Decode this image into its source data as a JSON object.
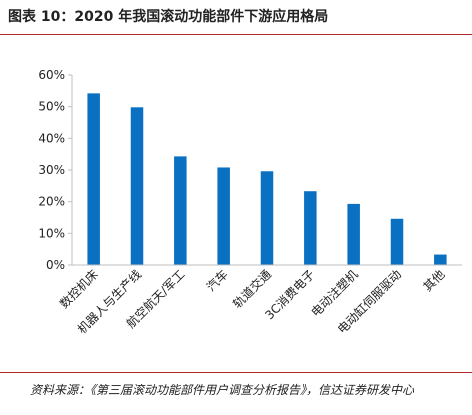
{
  "figure": {
    "title": "图表 10：2020 年我国滚动功能部件下游应用格局",
    "source": "资料来源：《第三届滚动功能部件用户调查分析报告》，信达证券研发中心"
  },
  "colors": {
    "bar": "#0a70c2",
    "axis": "#bfbfbf",
    "rule": "#b0262d",
    "text": "#222222"
  },
  "chart_data": {
    "type": "bar",
    "categories": [
      "数控机床",
      "机器人与生产线",
      "航空航天/军工",
      "汽车",
      "轨道交通",
      "3C消费电子",
      "电动注塑机",
      "电动缸伺服驱动",
      "其他"
    ],
    "values": [
      54.2,
      49.8,
      34.3,
      30.8,
      29.6,
      23.3,
      19.3,
      14.6,
      3.3
    ],
    "ylim": [
      0,
      60
    ],
    "yticks": [
      "0%",
      "10%",
      "20%",
      "30%",
      "40%",
      "50%",
      "60%"
    ],
    "value_format": "percent",
    "grid": false,
    "legend": "none"
  }
}
